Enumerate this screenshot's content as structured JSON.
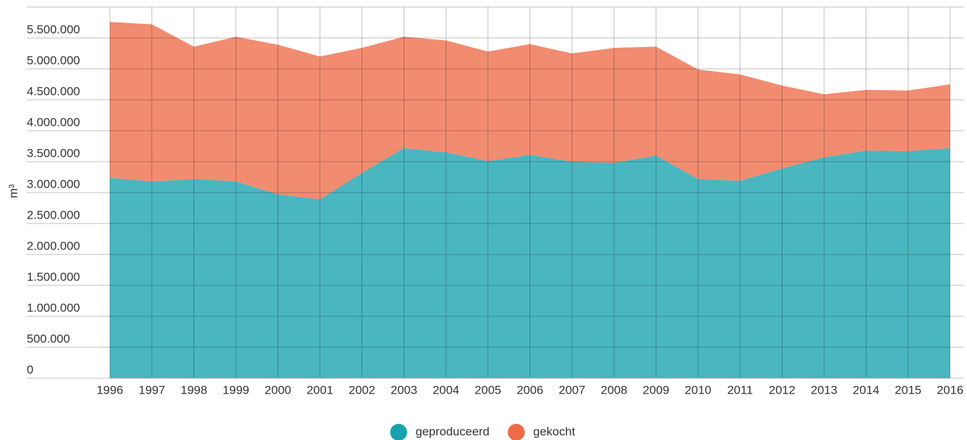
{
  "chart_data": {
    "type": "area",
    "stacked": true,
    "y_label": "m³",
    "categories": [
      "1996",
      "1997",
      "1998",
      "1999",
      "2000",
      "2001",
      "2002",
      "2003",
      "2004",
      "2005",
      "2006",
      "2007",
      "2008",
      "2009",
      "2010",
      "2011",
      "2012",
      "2013",
      "2014",
      "2015",
      "2016"
    ],
    "series": [
      {
        "name": "geproduceerd",
        "color": "#17a2ae",
        "values": [
          3240000,
          3180000,
          3220000,
          3180000,
          2970000,
          2890000,
          3320000,
          3720000,
          3650000,
          3510000,
          3610000,
          3500000,
          3480000,
          3600000,
          3220000,
          3190000,
          3390000,
          3570000,
          3680000,
          3670000,
          3720000
        ]
      },
      {
        "name": "gekocht",
        "color": "#ee6b48",
        "values": [
          2520000,
          2540000,
          2140000,
          2340000,
          2420000,
          2310000,
          2020000,
          1800000,
          1810000,
          1770000,
          1790000,
          1750000,
          1860000,
          1760000,
          1770000,
          1720000,
          1340000,
          1020000,
          980000,
          980000,
          1030000
        ]
      }
    ],
    "ylim": [
      0,
      6000000
    ],
    "yticks": [
      0,
      {
        "value": 500000,
        "label": "500.000"
      },
      {
        "value": 1000000,
        "label": "1.000.000"
      },
      {
        "value": 1500000,
        "label": "1.500.000"
      },
      {
        "value": 2000000,
        "label": "2.000.000"
      },
      {
        "value": 2500000,
        "label": "2.500.000"
      },
      {
        "value": 3000000,
        "label": "3.000.000"
      },
      {
        "value": 3500000,
        "label": "3.500.000"
      },
      {
        "value": 4000000,
        "label": "4.000.000"
      },
      {
        "value": 4500000,
        "label": "4.500.000"
      },
      {
        "value": 5000000,
        "label": "5.000.000"
      },
      {
        "value": 5500000,
        "label": "5.500.000"
      },
      {
        "value": 6000000,
        "label": ""
      }
    ],
    "grid": true,
    "legend": "bottom"
  }
}
